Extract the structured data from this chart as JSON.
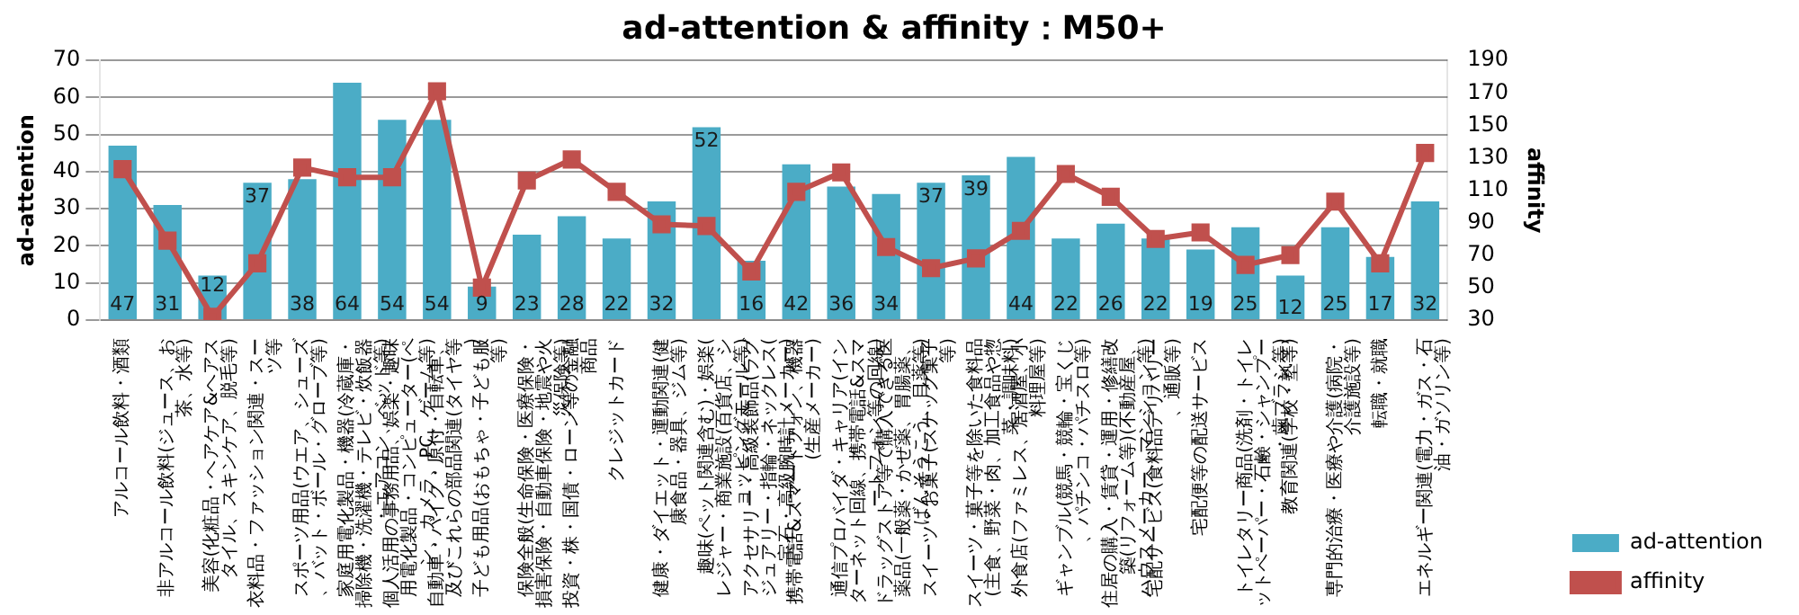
{
  "chart_data": {
    "type": "bar",
    "title": "ad-attention & affinity：M50+",
    "ylabel": "ad-attention",
    "y2label": "affinity",
    "categories": [
      "アルコール飲料・酒類",
      "非アルコール飲料(ジュース、お茶、水等)",
      "美容(化粧品・ヘアケア&ヘアスタイル、スキンケア、脱毛等)",
      "衣料品・ファッション関連・スーツ等",
      "スポーツ用品(ウエア、シューズ、バット・ボール・グローブ等)",
      "家庭用電化製品・機器(冷蔵庫・掃除機・洗濯機・テレビ・炊飯器・エアコン、ベッド等)",
      "個人活用の事務用品、娯楽・趣味用電化製品・コンピューター(ペン、カメラ、PC、ゲーム等)",
      "自動車・バイク・原付・自転車、及びこれらの部品関連(タイヤ等)",
      "子ども用品(おもちゃ・子ども服等)",
      "保険全般(生命保険・医療保険・損害保険・自動車保険・地震や火災保険等)",
      "投資・株・国債・ローン等の金融商品",
      "クレジットカード",
      "健康・ダイエット・運動関連(健康食品・器具、ジム等)",
      "趣味(ペット関連含む)・娯楽(レジャー・商業施設(百貨店、ショッピングモール等)",
      "アクセサリー・高級装飾品(ラグジュアリー・指輪・ネックレス(宝石・高級腕時計メーカー)",
      "携帯電話&スマートフォン、機器(生産メーカー)",
      "通信プロバイダ・キャリア(インターネット回線、携帯電話&スマートフォン等の回線)",
      "ドラッグストア等で購入できる医薬品(一般薬・かぜ薬、胃腸薬、ばんそうこう、目薬等)",
      "スイーツ・お菓子(スナック菓子等)",
      "スイーツ・菓子等を除いた食料品(主食、野菜・肉、加工食品や惣菜・調味料)",
      "外食店(ファミレス、居酒屋、小料理屋等)",
      "ギャンブル(競馬・競輪・宝くじ、パチンコ・パチスロ等)",
      "住居の購入・賃貸・運用・修繕改築(リフォーム等)(不動産屋、ハウスメーカー、マンション等)",
      "宅配サービス(食料品デリバリー、通販等)",
      "宅配便等の配送サービス",
      "トイレタリー商品(洗剤・トイレットペーパー・石鹸・シャンプー・歯ブラシ等)",
      "教育関連(学校・塾等)",
      "専門的治療・医療や介護(病院・介護施設等)",
      "転職・就職",
      "エネルギー関連(電力・ガス・石油・ガソリン等)"
    ],
    "series": [
      {
        "name": "ad-attention",
        "color": "#4bacc6",
        "values": [
          47,
          31,
          12,
          37,
          38,
          64,
          54,
          54,
          9,
          23,
          28,
          22,
          32,
          52,
          16,
          42,
          36,
          34,
          37,
          39,
          44,
          22,
          26,
          22,
          19,
          25,
          12,
          25,
          17,
          32
        ],
        "value_labels": [
          "47",
          "31",
          "12",
          "37",
          "38",
          "64",
          "54",
          "54",
          "9",
          "23",
          "28",
          "22",
          "32",
          "52",
          "16",
          "42",
          "36",
          "34",
          "37",
          "39",
          "44",
          "22",
          "26",
          "22",
          "19",
          "25",
          "12",
          "25",
          "17",
          "32"
        ]
      },
      {
        "name": "affinity",
        "type": "line",
        "axis": "y2",
        "color": "#c0504d",
        "marker": "square",
        "values": [
          123,
          79,
          32,
          65,
          124,
          118,
          118,
          171,
          50,
          116,
          129,
          109,
          89,
          88,
          60,
          109,
          121,
          75,
          62,
          68,
          85,
          120,
          106,
          80,
          84,
          64,
          70,
          103,
          65,
          133
        ]
      }
    ],
    "ylim": [
      0,
      70
    ],
    "yticks": [
      0,
      10,
      20,
      30,
      40,
      50,
      60,
      70
    ],
    "y2lim": [
      30,
      190
    ],
    "y2ticks": [
      30,
      50,
      70,
      90,
      110,
      130,
      150,
      170,
      190
    ],
    "grid": "y",
    "legend": "right"
  }
}
